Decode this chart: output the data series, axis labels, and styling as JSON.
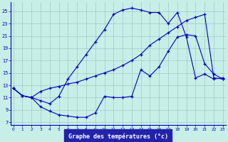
{
  "bg_color": "#c8eee8",
  "grid_color": "#a0c8c0",
  "line_color": "#0000bb",
  "xlabel": "Graphe des températures (°c)",
  "xlabel_bg": "#2222aa",
  "xlabel_fg": "#ffffff",
  "x_ticks": [
    0,
    1,
    2,
    3,
    4,
    5,
    6,
    7,
    8,
    9,
    10,
    11,
    12,
    13,
    14,
    15,
    16,
    17,
    18,
    19,
    20,
    21,
    22,
    23
  ],
  "y_ticks": [
    7,
    9,
    11,
    13,
    15,
    17,
    19,
    21,
    23,
    25
  ],
  "xlim": [
    -0.3,
    23.3
  ],
  "ylim": [
    6.5,
    26.5
  ],
  "line1_x": [
    0,
    1,
    2,
    3,
    4,
    5,
    6,
    7,
    8,
    9,
    10,
    11,
    12,
    13,
    14,
    15,
    16,
    17,
    18,
    19,
    20,
    21,
    22,
    23
  ],
  "line1_y": [
    12.5,
    11.3,
    11.0,
    12.0,
    12.5,
    12.8,
    13.2,
    13.5,
    14.0,
    14.5,
    15.0,
    15.5,
    16.2,
    17.0,
    18.0,
    19.5,
    20.5,
    21.5,
    22.5,
    23.5,
    24.0,
    24.5,
    14.2,
    14.0
  ],
  "line2_x": [
    0,
    1,
    2,
    3,
    4,
    5,
    6,
    7,
    8,
    9,
    10,
    11,
    12,
    13,
    14,
    15,
    16,
    17,
    18,
    19,
    20,
    21,
    22,
    23
  ],
  "line2_y": [
    12.5,
    11.3,
    11.0,
    10.5,
    10.0,
    11.2,
    14.0,
    16.0,
    18.0,
    20.0,
    22.0,
    24.5,
    25.2,
    25.5,
    25.2,
    24.8,
    24.8,
    23.0,
    24.8,
    20.8,
    14.2,
    14.8,
    14.0,
    14.2
  ],
  "line3_x": [
    0,
    1,
    2,
    3,
    4,
    5,
    6,
    7,
    8,
    9,
    10,
    11,
    12,
    13,
    14,
    15,
    16,
    17,
    18,
    19,
    20,
    21,
    22,
    23
  ],
  "line3_y": [
    12.5,
    11.3,
    11.0,
    9.5,
    8.8,
    8.2,
    8.0,
    7.8,
    7.8,
    8.5,
    11.2,
    11.0,
    11.0,
    11.2,
    15.5,
    14.5,
    16.0,
    18.5,
    20.8,
    21.2,
    21.0,
    16.5,
    14.8,
    14.0
  ]
}
